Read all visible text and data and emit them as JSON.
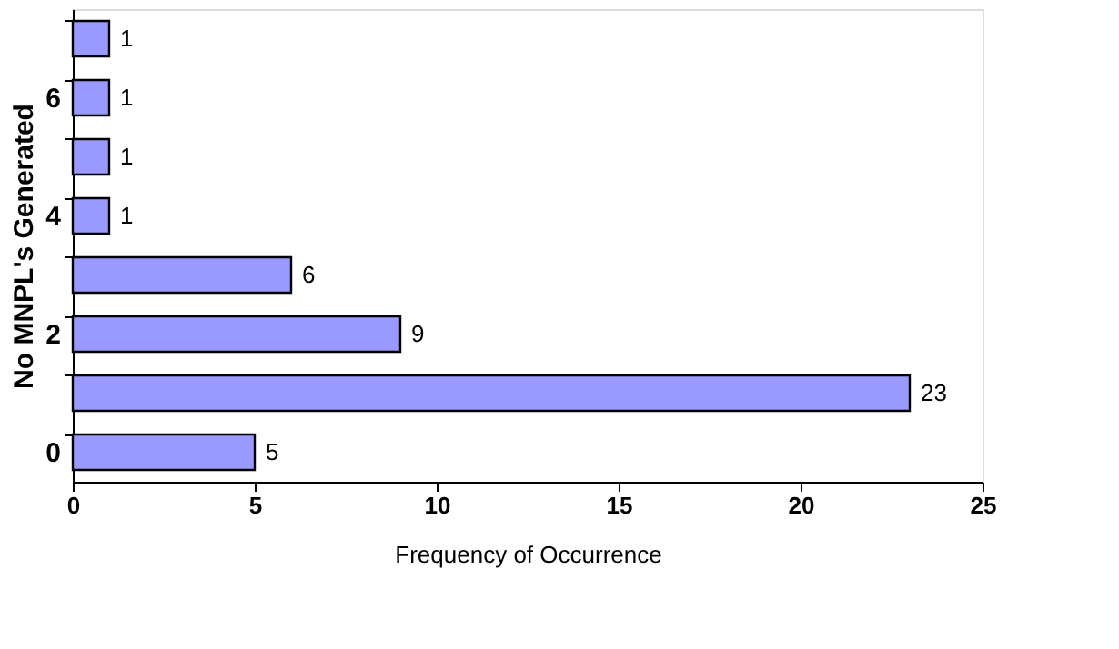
{
  "chart_data": {
    "type": "bar",
    "orientation": "horizontal",
    "categories": [
      null,
      "6",
      null,
      "4",
      null,
      "2",
      null,
      "0"
    ],
    "values": [
      1,
      1,
      1,
      1,
      6,
      9,
      23,
      5
    ],
    "color": "#9999ff",
    "xlabel": "Frequency of Occurrence",
    "ylabel": "No MNPL's Generated",
    "xlim": [
      0,
      25
    ],
    "xticks": [
      0,
      5,
      10,
      15,
      20,
      25
    ],
    "data_labels": true,
    "grid": false
  }
}
